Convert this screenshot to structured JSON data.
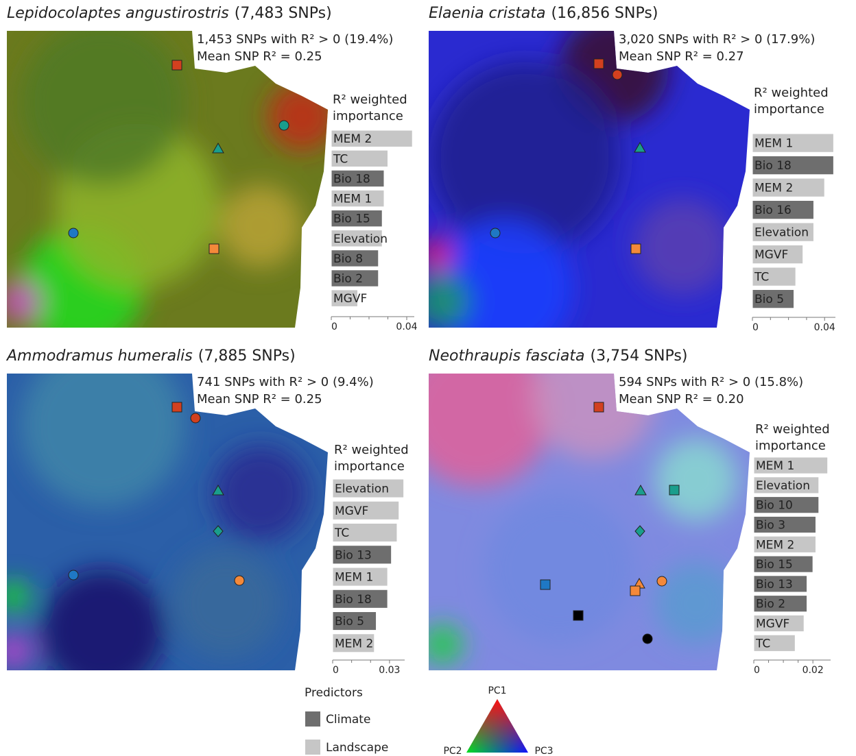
{
  "chart_data": [
    {
      "type": "bar",
      "orientation": "horizontal",
      "title": "Lepidocolaptes angustirostris",
      "subtitle": "(7,483 SNPs)",
      "annotations": [
        "1,453 SNPs with R² > 0 (19.4%)",
        "Mean SNP R² = 0.25"
      ],
      "xlabel": [
        "R² weighted",
        "importance"
      ],
      "categories": [
        "MEM 2",
        "TC",
        "Bio 18",
        "MEM 1",
        "Bio 15",
        "Elevation",
        "Bio 8",
        "Bio 2",
        "MGVF"
      ],
      "values": [
        0.043,
        0.03,
        0.028,
        0.028,
        0.027,
        0.027,
        0.025,
        0.025,
        0.014
      ],
      "groups": [
        "Landscape",
        "Landscape",
        "Climate",
        "Landscape",
        "Climate",
        "Landscape",
        "Climate",
        "Climate",
        "Landscape"
      ],
      "xlim": [
        0,
        0.044
      ],
      "xticks": [
        0,
        0.04
      ],
      "minor_xticks": [
        0.01,
        0.02,
        0.03
      ]
    },
    {
      "type": "bar",
      "orientation": "horizontal",
      "title": "Elaenia cristata",
      "subtitle": "(16,856 SNPs)",
      "annotations": [
        "3,020 SNPs with R² > 0 (17.9%)",
        "Mean SNP R² = 0.27"
      ],
      "xlabel": [
        "R² weighted",
        "importance"
      ],
      "categories": [
        "MEM 1",
        "Bio 18",
        "MEM 2",
        "Bio 16",
        "Elevation",
        "MGVF",
        "TC",
        "Bio 5"
      ],
      "values": [
        0.045,
        0.045,
        0.04,
        0.034,
        0.034,
        0.028,
        0.024,
        0.023
      ],
      "groups": [
        "Landscape",
        "Climate",
        "Landscape",
        "Climate",
        "Landscape",
        "Landscape",
        "Landscape",
        "Climate"
      ],
      "xlim": [
        0,
        0.046
      ],
      "xticks": [
        0,
        0.04
      ],
      "minor_xticks": [
        0.01,
        0.02,
        0.03
      ]
    },
    {
      "type": "bar",
      "orientation": "horizontal",
      "title": "Ammodramus humeralis",
      "subtitle": "(7,885 SNPs)",
      "annotations": [
        "741 SNPs with R² > 0 (9.4%)",
        "Mean SNP R² = 0.25"
      ],
      "xlabel": [
        "R² weighted",
        "importance"
      ],
      "categories": [
        "Elevation",
        "MGVF",
        "TC",
        "Bio 13",
        "MEM 1",
        "Bio 18",
        "Bio 5",
        "MEM 2"
      ],
      "values": [
        0.0375,
        0.035,
        0.034,
        0.031,
        0.029,
        0.029,
        0.023,
        0.022
      ],
      "groups": [
        "Landscape",
        "Landscape",
        "Landscape",
        "Climate",
        "Landscape",
        "Climate",
        "Climate",
        "Landscape"
      ],
      "xlim": [
        0,
        0.038
      ],
      "xticks": [
        0,
        0.03
      ],
      "minor_xticks": [
        0.01,
        0.02
      ]
    },
    {
      "type": "bar",
      "orientation": "horizontal",
      "title": "Neothraupis fasciata",
      "subtitle": "(3,754 SNPs)",
      "annotations": [
        "594 SNPs with R² > 0 (15.8%)",
        "Mean SNP R² = 0.20"
      ],
      "xlabel": [
        "R² weighted",
        "importance"
      ],
      "categories": [
        "MEM 1",
        "Elevation",
        "Bio 10",
        "Bio 3",
        "MEM 2",
        "Bio 15",
        "Bio 13",
        "Bio 2",
        "MGVF",
        "TC"
      ],
      "values": [
        0.025,
        0.022,
        0.022,
        0.021,
        0.021,
        0.02,
        0.018,
        0.018,
        0.017,
        0.014
      ],
      "groups": [
        "Landscape",
        "Landscape",
        "Climate",
        "Climate",
        "Landscape",
        "Climate",
        "Climate",
        "Climate",
        "Landscape",
        "Landscape"
      ],
      "xlim": [
        0,
        0.026
      ],
      "xticks": [
        0,
        0.02
      ],
      "minor_xticks": [
        0.005,
        0.01,
        0.015
      ]
    }
  ],
  "legend": {
    "title": "Predictors",
    "items": [
      {
        "name": "Climate",
        "color": "#6e6e6e"
      },
      {
        "name": "Landscape",
        "color": "#c6c6c6"
      }
    ]
  },
  "color_key": {
    "labels": [
      "PC1",
      "PC2",
      "PC3"
    ]
  }
}
